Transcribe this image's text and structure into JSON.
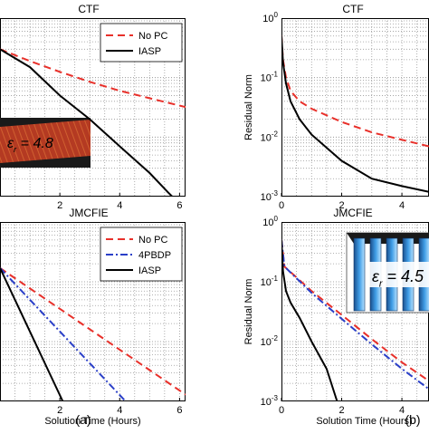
{
  "chart_data": [
    {
      "id": "a-top",
      "type": "line",
      "title": "CTF",
      "xlabel": "",
      "ylabel": "",
      "scale": "log",
      "xlim": [
        0,
        6.2
      ],
      "ylim_exp": [
        -3,
        0
      ],
      "xticks": [
        "2",
        "4",
        "6"
      ],
      "yticks": [],
      "legend": "top-right",
      "grid": true,
      "series": [
        {
          "name": "No PC",
          "color": "#e8302a",
          "dash": "8 5",
          "x": [
            0,
            1,
            2,
            3,
            4,
            5,
            6.2
          ],
          "y": [
            0.3,
            0.19,
            0.125,
            0.085,
            0.06,
            0.045,
            0.032
          ]
        },
        {
          "name": "IASP",
          "color": "#000000",
          "dash": "",
          "x": [
            0,
            1,
            2,
            3,
            4,
            5,
            5.6,
            6.2
          ],
          "y": [
            0.3,
            0.15,
            0.05,
            0.02,
            0.007,
            0.0025,
            0.0012,
            0.0006
          ]
        }
      ],
      "inset": "stripe",
      "inset_text": "ε_r = 4.8"
    },
    {
      "id": "b-top",
      "type": "line",
      "title": "CTF",
      "xlabel": "",
      "ylabel": "Residual Norm",
      "scale": "log",
      "xlim": [
        0,
        4.9
      ],
      "ylim_exp": [
        -3,
        0
      ],
      "xticks": [
        "0",
        "2",
        "4"
      ],
      "yticks": [
        "10^0",
        "10^-1",
        "10^-2",
        "10^-3"
      ],
      "legend": "",
      "grid": true,
      "series": [
        {
          "name": "No PC",
          "color": "#e8302a",
          "dash": "8 5",
          "x": [
            0,
            0.05,
            0.15,
            0.3,
            0.6,
            1,
            2,
            3,
            4,
            4.9
          ],
          "y": [
            0.5,
            0.2,
            0.1,
            0.06,
            0.04,
            0.03,
            0.018,
            0.012,
            0.009,
            0.007
          ]
        },
        {
          "name": "IASP",
          "color": "#000000",
          "dash": "",
          "x": [
            0,
            0.05,
            0.15,
            0.3,
            0.6,
            1,
            2,
            3,
            4,
            4.9
          ],
          "y": [
            0.5,
            0.18,
            0.08,
            0.04,
            0.02,
            0.011,
            0.004,
            0.002,
            0.0015,
            0.0012
          ]
        }
      ]
    },
    {
      "id": "a-bottom",
      "type": "line",
      "title": "JMCFIE",
      "xlabel": "Solution Time (Hours)",
      "ylabel": "",
      "scale": "log",
      "xlim": [
        0,
        6.2
      ],
      "ylim_exp": [
        -3,
        0
      ],
      "xticks": [
        "2",
        "4",
        "6"
      ],
      "yticks": [],
      "legend": "top-right",
      "grid": true,
      "series": [
        {
          "name": "No PC",
          "color": "#e8302a",
          "dash": "8 5",
          "x": [
            0,
            6.2
          ],
          "y": [
            0.17,
            0.0013
          ]
        },
        {
          "name": "4PBDP",
          "color": "#2a3fc8",
          "dash": "8 3 2 3",
          "x": [
            0,
            4.2
          ],
          "y": [
            0.17,
            0.001
          ]
        },
        {
          "name": "IASP",
          "color": "#000000",
          "dash": "",
          "x": [
            0,
            2.1
          ],
          "y": [
            0.17,
            0.001
          ]
        }
      ]
    },
    {
      "id": "b-bottom",
      "type": "line",
      "title": "JMCFIE",
      "xlabel": "Solution Time (Hours)",
      "ylabel": "Residual Norm",
      "scale": "log",
      "xlim": [
        0,
        4.9
      ],
      "ylim_exp": [
        -3,
        0
      ],
      "xticks": [
        "0",
        "2",
        "4"
      ],
      "yticks": [
        "10^0",
        "10^-1",
        "10^-2",
        "10^-3"
      ],
      "legend": "",
      "grid": true,
      "series": [
        {
          "name": "No PC",
          "color": "#e8302a",
          "dash": "8 5",
          "x": [
            0,
            0.1,
            1,
            2,
            3,
            4,
            4.9
          ],
          "y": [
            0.5,
            0.18,
            0.07,
            0.028,
            0.011,
            0.0045,
            0.0022
          ]
        },
        {
          "name": "4PBDP",
          "color": "#2a3fc8",
          "dash": "8 3 2 3",
          "x": [
            0,
            0.1,
            1,
            2,
            3,
            4,
            4.9
          ],
          "y": [
            0.5,
            0.18,
            0.065,
            0.024,
            0.009,
            0.0035,
            0.0016
          ]
        },
        {
          "name": "IASP",
          "color": "#000000",
          "dash": "",
          "x": [
            0,
            0.05,
            0.15,
            0.3,
            0.6,
            1,
            1.5,
            1.85
          ],
          "y": [
            0.5,
            0.15,
            0.07,
            0.045,
            0.025,
            0.01,
            0.0035,
            0.001
          ]
        }
      ],
      "inset": "columns",
      "inset_text": "ε_r = 4.5"
    }
  ],
  "panel_labels": {
    "a": "(a)",
    "b": "(b)"
  }
}
